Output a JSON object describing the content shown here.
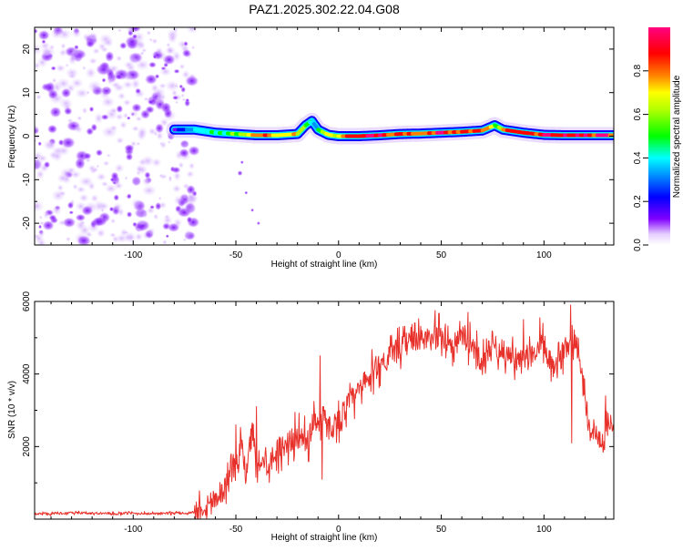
{
  "figure_title": "PAZ1.2025.302.22.04.G08",
  "chart_data": [
    {
      "type": "heatmap",
      "name": "spectrogram",
      "xlabel": "Height of straight line (km)",
      "ylabel": "Frequency (Hz)",
      "xlim": [
        -148,
        134
      ],
      "ylim": [
        -25,
        25
      ],
      "xticks": [
        -100,
        -50,
        0,
        50,
        100
      ],
      "yticks": [
        -20,
        -10,
        0,
        10,
        20
      ],
      "xtick_labels": [
        "-100",
        "-50",
        "0",
        "50",
        "100"
      ],
      "ytick_labels": [
        "-20",
        "-10",
        "0",
        "10",
        "20"
      ],
      "noise_region_x": [
        -148,
        -70
      ],
      "ridge": {
        "x": [
          -80,
          -70,
          -60,
          -50,
          -40,
          -30,
          -20,
          -16,
          -13,
          -10,
          -5,
          0,
          10,
          20,
          30,
          40,
          50,
          60,
          70,
          76,
          80,
          90,
          100,
          110,
          120,
          134
        ],
        "freq": [
          1.5,
          1.5,
          0.8,
          0.5,
          0.2,
          0.2,
          0.5,
          2.5,
          3.5,
          1.5,
          0.3,
          0.0,
          0.0,
          0.2,
          0.5,
          0.6,
          0.8,
          1.0,
          1.3,
          2.5,
          1.5,
          0.8,
          0.3,
          0.2,
          0.2,
          0.2
        ],
        "amplitude": [
          0.1,
          0.3,
          0.4,
          0.5,
          0.7,
          0.75,
          0.6,
          0.5,
          0.3,
          0.45,
          0.6,
          0.75,
          0.85,
          0.85,
          0.8,
          0.75,
          0.85,
          0.8,
          0.75,
          0.55,
          0.75,
          0.8,
          0.85,
          0.85,
          0.85,
          0.85
        ]
      },
      "colorbar": {
        "label": "Normalized spectral amplitude",
        "range": [
          0.0,
          1.0
        ],
        "ticks": [
          0.0,
          0.2,
          0.4,
          0.6,
          0.8
        ],
        "tick_labels": [
          "0.0",
          "0.2",
          "0.4",
          "0.6",
          "0.8"
        ],
        "colors": [
          "#ffffff",
          "#8000ff",
          "#0000ff",
          "#00ffff",
          "#00ff00",
          "#ffff00",
          "#ff8000",
          "#ff0000",
          "#ff0080"
        ]
      }
    },
    {
      "type": "line",
      "name": "snr",
      "xlabel": "Height of straight line (km)",
      "ylabel": "SNR (10 * v/v)",
      "xlim": [
        -148,
        134
      ],
      "ylim": [
        0,
        6000
      ],
      "xticks": [
        -100,
        -50,
        0,
        50,
        100
      ],
      "yticks": [
        2000,
        4000,
        6000
      ],
      "xtick_labels": [
        "-100",
        "-50",
        "0",
        "50",
        "100"
      ],
      "ytick_labels": [
        "2000",
        "4000",
        "6000"
      ],
      "color": "#e8302a",
      "x": [
        -148,
        -140,
        -130,
        -120,
        -110,
        -100,
        -90,
        -80,
        -75,
        -70,
        -65,
        -60,
        -55,
        -52,
        -50,
        -47,
        -45,
        -42,
        -40,
        -37,
        -35,
        -30,
        -25,
        -20,
        -15,
        -12,
        -10,
        -8,
        -5,
        0,
        5,
        10,
        15,
        20,
        25,
        30,
        35,
        40,
        45,
        50,
        55,
        60,
        65,
        70,
        75,
        80,
        85,
        90,
        95,
        100,
        105,
        110,
        115,
        118,
        120,
        122,
        125,
        128,
        130,
        134
      ],
      "y": [
        150,
        150,
        170,
        160,
        150,
        160,
        150,
        170,
        160,
        200,
        350,
        600,
        900,
        1600,
        1300,
        2200,
        1000,
        2700,
        1300,
        1800,
        1500,
        1900,
        2100,
        2300,
        2100,
        2800,
        2600,
        2900,
        2500,
        2700,
        3200,
        3500,
        3900,
        4300,
        4500,
        4700,
        4900,
        5000,
        4900,
        5100,
        4800,
        5000,
        4800,
        4300,
        4900,
        4600,
        4500,
        4300,
        4600,
        4800,
        4000,
        4700,
        5100,
        4200,
        3200,
        2600,
        2400,
        2100,
        2700,
        2600
      ],
      "peaks": [
        {
          "x": -50,
          "y": 2600
        },
        {
          "x": -40,
          "y": 3100
        },
        {
          "x": -9,
          "y": 4500
        },
        {
          "x": -8,
          "y": 1100
        },
        {
          "x": 37,
          "y": 5400
        },
        {
          "x": 47,
          "y": 5750
        },
        {
          "x": 63,
          "y": 5700
        },
        {
          "x": 90,
          "y": 5500
        },
        {
          "x": 98,
          "y": 5550
        },
        {
          "x": 113,
          "y": 5900
        },
        {
          "x": 113.5,
          "y": 2100
        },
        {
          "x": 130,
          "y": 3400
        }
      ]
    }
  ]
}
